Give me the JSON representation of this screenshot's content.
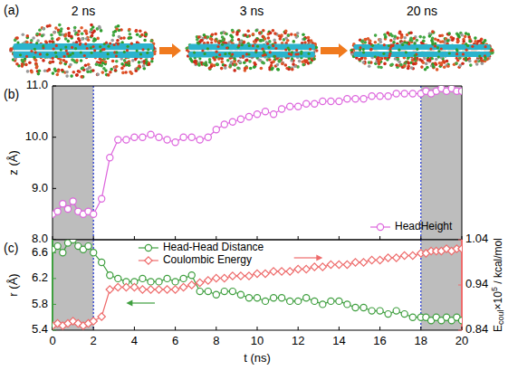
{
  "panel_a": {
    "label": "(a)",
    "snapshots": [
      "2 ns",
      "3 ns",
      "20 ns"
    ]
  },
  "chart_data": [
    {
      "type": "line",
      "title": "(b)",
      "x": [
        0,
        0.25,
        0.5,
        0.75,
        1,
        1.25,
        1.5,
        1.75,
        2,
        2.4,
        2.8,
        3.2,
        3.6,
        4,
        4.4,
        4.8,
        5.2,
        5.6,
        6,
        6.4,
        6.8,
        7.2,
        7.6,
        8,
        8.4,
        8.8,
        9.2,
        9.6,
        10,
        10.4,
        10.8,
        11.2,
        11.6,
        12,
        12.4,
        12.8,
        13.2,
        13.6,
        14,
        14.4,
        14.8,
        15.2,
        15.6,
        16,
        16.4,
        16.8,
        17.2,
        17.6,
        18,
        18.25,
        18.5,
        18.75,
        19,
        19.25,
        19.5,
        19.75,
        20
      ],
      "xlim": [
        0,
        20
      ],
      "xticks": [
        0,
        2,
        4,
        6,
        8,
        10,
        12,
        14,
        16,
        18,
        20
      ],
      "ylabel": "z (Å)",
      "ylim": [
        8,
        11
      ],
      "yticks": [
        {
          "value": 8,
          "label": "8.0"
        },
        {
          "value": 9,
          "label": "9.0"
        },
        {
          "value": 10,
          "label": "10.0"
        },
        {
          "value": 11,
          "label": "11.0"
        }
      ],
      "tick_labels": "y",
      "legend": "lower right",
      "highlight_ranges": [
        [
          0,
          2
        ],
        [
          18,
          20
        ]
      ],
      "series": [
        {
          "name": "HeadHeight",
          "color": "#dd66dd",
          "marker": "circle",
          "line_style": "solid",
          "values": [
            8.5,
            8.55,
            8.7,
            8.6,
            8.75,
            8.55,
            8.5,
            8.55,
            8.5,
            8.8,
            9.6,
            9.95,
            9.95,
            10.0,
            10.0,
            10.05,
            10.0,
            9.95,
            9.9,
            10.0,
            10.0,
            9.95,
            10.0,
            10.15,
            10.25,
            10.3,
            10.35,
            10.4,
            10.45,
            10.5,
            10.45,
            10.55,
            10.6,
            10.6,
            10.65,
            10.65,
            10.7,
            10.7,
            10.7,
            10.75,
            10.75,
            10.75,
            10.8,
            10.8,
            10.8,
            10.85,
            10.85,
            10.85,
            10.85,
            10.9,
            10.85,
            10.9,
            10.95,
            10.9,
            10.95,
            10.9,
            10.9
          ]
        }
      ]
    },
    {
      "type": "line",
      "title": "(c)",
      "x": [
        0,
        0.25,
        0.5,
        0.75,
        1,
        1.25,
        1.5,
        1.75,
        2,
        2.4,
        2.8,
        3.2,
        3.6,
        4,
        4.4,
        4.8,
        5.2,
        5.6,
        6,
        6.4,
        6.8,
        7.2,
        7.6,
        8,
        8.4,
        8.8,
        9.2,
        9.6,
        10,
        10.4,
        10.8,
        11.2,
        11.6,
        12,
        12.4,
        12.8,
        13.2,
        13.6,
        14,
        14.4,
        14.8,
        15.2,
        15.6,
        16,
        16.4,
        16.8,
        17.2,
        17.6,
        18,
        18.25,
        18.5,
        18.75,
        19,
        19.25,
        19.5,
        19.75,
        20
      ],
      "xlabel": "t (ns)",
      "xlim": [
        0,
        20
      ],
      "xticks": [
        0,
        2,
        4,
        6,
        8,
        10,
        12,
        14,
        16,
        18,
        20
      ],
      "ylabel": "r (Å)",
      "ylim": [
        5.4,
        6.8
      ],
      "yticks": [
        5.4,
        5.8,
        6.2,
        6.6
      ],
      "y2label": "Ecoul×105 / kcal/mol",
      "y2lim": [
        0.84,
        1.04
      ],
      "y2ticks": [
        0.84,
        0.94,
        1.04
      ],
      "legend": "upper center",
      "highlight_ranges": [
        [
          0,
          2
        ],
        [
          18,
          20
        ]
      ],
      "series": [
        {
          "name": "Head-Head Distance",
          "color": "#3f9f3f",
          "marker": "circle",
          "line_style": "solid",
          "values": [
            6.65,
            6.7,
            6.6,
            6.75,
            6.8,
            6.7,
            6.65,
            6.7,
            6.6,
            6.45,
            6.25,
            6.2,
            6.15,
            6.15,
            6.2,
            6.15,
            6.15,
            6.2,
            6.15,
            6.2,
            6.25,
            6.0,
            6.0,
            5.95,
            6.0,
            6.0,
            5.95,
            5.9,
            5.9,
            5.85,
            5.9,
            5.9,
            5.85,
            5.85,
            5.9,
            5.85,
            5.8,
            5.85,
            5.85,
            5.8,
            5.75,
            5.75,
            5.7,
            5.7,
            5.65,
            5.7,
            5.65,
            5.6,
            5.6,
            5.6,
            5.55,
            5.6,
            5.55,
            5.6,
            5.55,
            5.6,
            5.55
          ]
        },
        {
          "name": "Coulombic Energy",
          "color": "#ee6b6b",
          "marker": "diamond",
          "line_style": "solid",
          "axis": "y2",
          "values": [
            0.85,
            0.855,
            0.85,
            0.855,
            0.86,
            0.855,
            0.85,
            0.855,
            0.86,
            0.87,
            0.93,
            0.935,
            0.935,
            0.935,
            0.93,
            0.93,
            0.93,
            0.93,
            0.93,
            0.935,
            0.94,
            0.945,
            0.95,
            0.955,
            0.955,
            0.96,
            0.96,
            0.96,
            0.965,
            0.965,
            0.97,
            0.97,
            0.97,
            0.975,
            0.975,
            0.98,
            0.98,
            0.985,
            0.985,
            0.985,
            0.99,
            0.99,
            0.995,
            0.995,
            1.0,
            1.0,
            1.005,
            1.005,
            1.01,
            1.01,
            1.015,
            1.015,
            1.015,
            1.02,
            1.015,
            1.02,
            1.02
          ]
        }
      ]
    }
  ]
}
